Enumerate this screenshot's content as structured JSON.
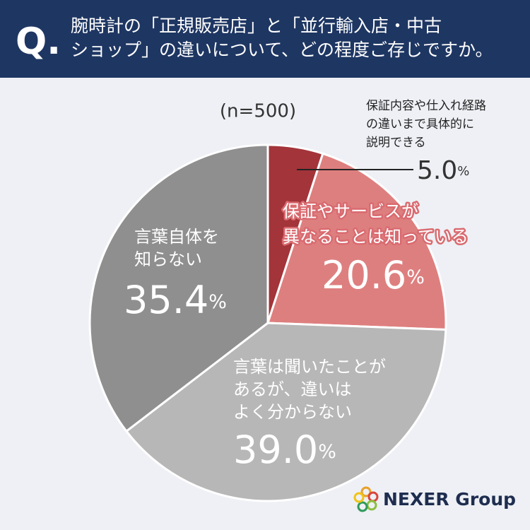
{
  "title_prefix": "Q.",
  "logo": "NEXER Group",
  "chart_data": {
    "type": "pie",
    "title": "腕時計の「正規販売店」と「並行輸入店・中古\nショップ」の違いについて、どの程度ご存じですか。",
    "subtitle": "(n=500)",
    "categories": [
      "保証内容や仕入れ経路\nの違いまで具体的に\n説明できる",
      "保証やサービスが\n異なることは知っている",
      "言葉は聞いたことが\nあるが、違いは\nよく分からない",
      "言葉自体を\n知らない"
    ],
    "values": [
      5.0,
      20.6,
      39.0,
      35.4
    ],
    "value_labels": [
      "5.0",
      "20.6",
      "39.0",
      "35.4"
    ],
    "unit": "%",
    "colors": [
      "#a3343a",
      "#de7f7f",
      "#b7b7b7",
      "#8f8f8f"
    ]
  }
}
